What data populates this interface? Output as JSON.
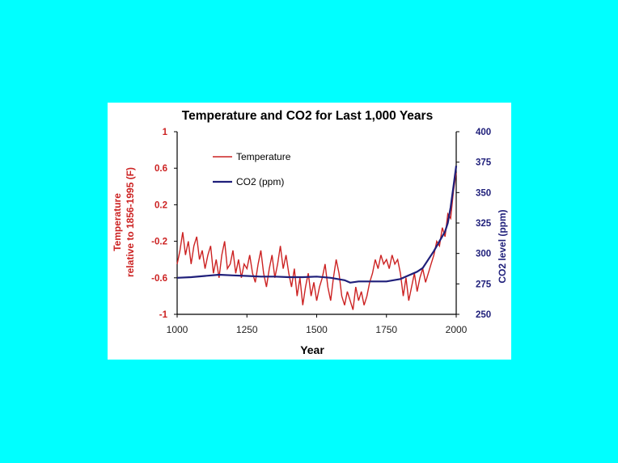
{
  "slide": {
    "background": "#00FFFF"
  },
  "chart_data": {
    "type": "line",
    "title": "Temperature and CO2 for Last 1,000 Years",
    "xlabel": "Year",
    "ylabel_left_line1": "Temperature",
    "ylabel_left_line2": "relative to 1856-1995 (F)",
    "ylabel_right": "CO2 level (ppm)",
    "xlim": [
      1000,
      2000
    ],
    "x_ticks": [
      "1000",
      "1250",
      "1500",
      "1750",
      "2000"
    ],
    "y_left_lim": [
      -1,
      1
    ],
    "y_left_ticks": [
      "1",
      "0.6",
      "0.2",
      "-0.2",
      "-0.6",
      "-1"
    ],
    "y_right_lim": [
      250,
      400
    ],
    "y_right_ticks": [
      "400",
      "375",
      "350",
      "325",
      "300",
      "275",
      "250"
    ],
    "grid": false,
    "legend_position": "top-left",
    "colors": {
      "temperature": "#cc2222",
      "co2": "#1f1f7a"
    },
    "series": [
      {
        "name": "Temperature",
        "axis": "left",
        "x": [
          1000,
          1010,
          1020,
          1030,
          1040,
          1050,
          1060,
          1070,
          1080,
          1090,
          1100,
          1110,
          1120,
          1130,
          1140,
          1150,
          1160,
          1170,
          1180,
          1190,
          1200,
          1210,
          1220,
          1230,
          1240,
          1250,
          1260,
          1270,
          1280,
          1290,
          1300,
          1310,
          1320,
          1330,
          1340,
          1350,
          1360,
          1370,
          1380,
          1390,
          1400,
          1410,
          1420,
          1430,
          1440,
          1450,
          1460,
          1470,
          1480,
          1490,
          1500,
          1510,
          1520,
          1530,
          1540,
          1550,
          1560,
          1570,
          1580,
          1590,
          1600,
          1610,
          1620,
          1630,
          1640,
          1650,
          1660,
          1670,
          1680,
          1690,
          1700,
          1710,
          1720,
          1730,
          1740,
          1750,
          1760,
          1770,
          1780,
          1790,
          1800,
          1810,
          1820,
          1830,
          1840,
          1850,
          1860,
          1870,
          1880,
          1890,
          1900,
          1910,
          1920,
          1930,
          1940,
          1950,
          1960,
          1970,
          1980,
          1990,
          2000
        ],
        "values": [
          -0.45,
          -0.3,
          -0.1,
          -0.35,
          -0.2,
          -0.45,
          -0.25,
          -0.15,
          -0.4,
          -0.3,
          -0.5,
          -0.35,
          -0.25,
          -0.55,
          -0.4,
          -0.6,
          -0.35,
          -0.2,
          -0.5,
          -0.45,
          -0.3,
          -0.55,
          -0.4,
          -0.6,
          -0.45,
          -0.5,
          -0.35,
          -0.55,
          -0.65,
          -0.45,
          -0.3,
          -0.55,
          -0.7,
          -0.5,
          -0.35,
          -0.6,
          -0.45,
          -0.25,
          -0.5,
          -0.35,
          -0.55,
          -0.7,
          -0.5,
          -0.8,
          -0.6,
          -0.9,
          -0.7,
          -0.55,
          -0.8,
          -0.65,
          -0.85,
          -0.7,
          -0.6,
          -0.45,
          -0.7,
          -0.85,
          -0.6,
          -0.4,
          -0.55,
          -0.8,
          -0.9,
          -0.75,
          -0.85,
          -0.95,
          -0.7,
          -0.85,
          -0.75,
          -0.9,
          -0.8,
          -0.65,
          -0.55,
          -0.4,
          -0.5,
          -0.35,
          -0.45,
          -0.4,
          -0.5,
          -0.35,
          -0.45,
          -0.4,
          -0.55,
          -0.8,
          -0.6,
          -0.85,
          -0.7,
          -0.55,
          -0.75,
          -0.6,
          -0.5,
          -0.65,
          -0.55,
          -0.45,
          -0.35,
          -0.2,
          -0.25,
          -0.05,
          -0.15,
          0.1,
          0.05,
          0.35,
          0.55
        ]
      },
      {
        "name": "CO2 (ppm)",
        "axis": "right",
        "x": [
          1000,
          1050,
          1100,
          1150,
          1200,
          1250,
          1300,
          1350,
          1400,
          1450,
          1500,
          1550,
          1600,
          1620,
          1650,
          1700,
          1750,
          1800,
          1830,
          1860,
          1880,
          1900,
          1920,
          1940,
          1960,
          1970,
          1980,
          1990,
          2000
        ],
        "values": [
          280,
          280.5,
          281.5,
          282.5,
          282,
          281.5,
          281,
          281,
          280.5,
          280.5,
          281,
          280,
          278,
          276,
          277,
          277,
          277,
          279,
          282,
          285,
          288,
          295,
          302,
          310,
          318,
          325,
          338,
          355,
          372
        ]
      }
    ]
  }
}
